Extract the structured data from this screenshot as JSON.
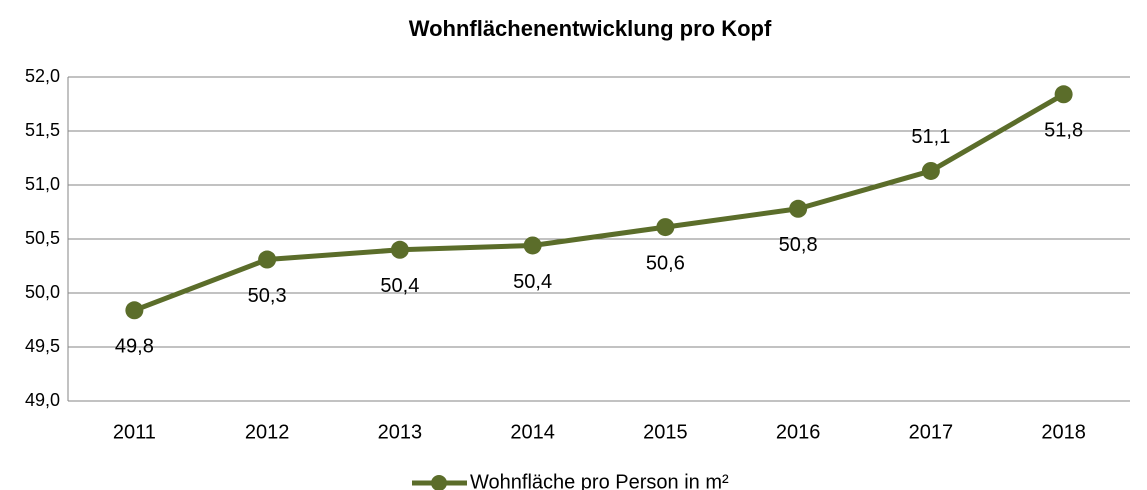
{
  "chart_data": {
    "type": "line",
    "title": "Wohnflächenentwicklung pro Kopf",
    "categories": [
      "2011",
      "2012",
      "2013",
      "2014",
      "2015",
      "2016",
      "2017",
      "2018"
    ],
    "series": [
      {
        "name": "Wohnfläche pro Person in m²",
        "color": "#5b6d2a",
        "values": [
          49.84,
          50.31,
          50.4,
          50.44,
          50.61,
          50.78,
          51.13,
          51.84
        ],
        "value_labels": [
          "49,8",
          "50,3",
          "50,4",
          "50,4",
          "50,6",
          "50,8",
          "51,1",
          "51,8"
        ]
      }
    ],
    "ylim": [
      49.0,
      52.0
    ],
    "yticks": [
      {
        "value": 49.0,
        "label": "49,0"
      },
      {
        "value": 49.5,
        "label": "49,5"
      },
      {
        "value": 50.0,
        "label": "50,0"
      },
      {
        "value": 50.5,
        "label": "50,5"
      },
      {
        "value": 51.0,
        "label": "51,0"
      },
      {
        "value": 51.5,
        "label": "51,5"
      },
      {
        "value": 52.0,
        "label": "52,0"
      }
    ],
    "grid": true,
    "legend": "bottom"
  }
}
